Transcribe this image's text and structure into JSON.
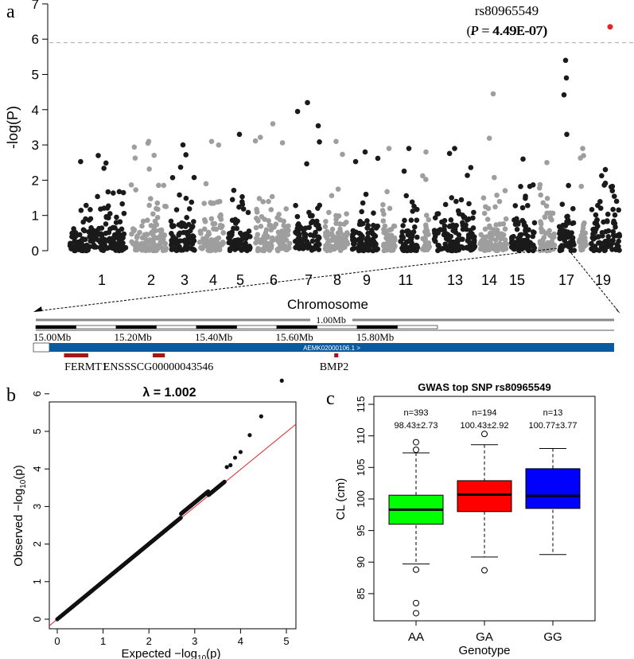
{
  "chart_data": [
    {
      "type": "scatter",
      "panel_label": "a",
      "subtype": "manhattan",
      "ylabel": "-log(P)",
      "ylim": [
        0,
        7
      ],
      "yticks": [
        "0",
        "1",
        "2",
        "3",
        "4",
        "5",
        "6",
        "7"
      ],
      "xtick_labels": [
        "1",
        "2",
        "3",
        "4",
        "5",
        "6",
        "7",
        "8",
        "9",
        "11",
        "13",
        "14",
        "15",
        "17",
        "19"
      ],
      "chromosomes": [
        "1",
        "2",
        "3",
        "4",
        "5",
        "6",
        "7",
        "8",
        "9",
        "10",
        "11",
        "12",
        "13",
        "14",
        "15",
        "16",
        "17",
        "18",
        "19"
      ],
      "significance_threshold": 5.9,
      "top_snp": {
        "id": "rs80965549",
        "annotation": "(P = 4.49E-07)",
        "p_label": "P",
        "p_value": "= 4.49E-07)",
        "neglogp": 6.35,
        "chromosome": "17"
      },
      "colors": {
        "odd": "#1a1a1a",
        "even": "#9e9e9e",
        "top": "#e8231f",
        "threshold": "#aaaaaa"
      }
    },
    {
      "type": "track",
      "title": "Chromosome",
      "scale_label": "1.00Mb",
      "ruler_labels": [
        "15.00Mb",
        "15.20Mb",
        "15.40Mb",
        "15.60Mb",
        "15.80Mb"
      ],
      "contig": "AEMK02000106.1 >",
      "genes": [
        {
          "name": "FERMT1",
          "start_mb": 15.07,
          "end_mb": 15.13
        },
        {
          "name": "ENSSSCG00000043546",
          "start_mb": 15.29,
          "end_mb": 15.32
        },
        {
          "name": "BMP2",
          "start_mb": 15.74,
          "end_mb": 15.75
        }
      ],
      "colors": {
        "contig": "#0a5aa0",
        "gene": "#a01818"
      }
    },
    {
      "type": "scatter",
      "subtype": "qq",
      "panel_label": "b",
      "title": "λ = 1.002",
      "xlabel": "Expected  −log",
      "ylabel": "Observed  −log",
      "axis_sub": "10",
      "axis_var": "(p)",
      "xlim": [
        0,
        5
      ],
      "ylim": [
        0,
        6.5
      ],
      "xticks": [
        "0",
        "1",
        "2",
        "3",
        "4",
        "5"
      ],
      "yticks": [
        "0",
        "1",
        "2",
        "3",
        "4",
        "5",
        "6"
      ],
      "lambda": 1.002,
      "tail_points": [
        [
          3.7,
          4.05
        ],
        [
          3.78,
          4.1
        ],
        [
          3.88,
          4.3
        ],
        [
          4.0,
          4.45
        ],
        [
          4.2,
          4.9
        ],
        [
          4.45,
          5.4
        ],
        [
          4.9,
          6.35
        ]
      ]
    },
    {
      "type": "box",
      "panel_label": "c",
      "title": "GWAS top SNP rs80965549",
      "xlabel": "Genotype",
      "ylabel": "CL (cm)",
      "ylim": [
        81,
        116
      ],
      "yticks": [
        "85",
        "90",
        "95",
        "100",
        "105",
        "110",
        "115"
      ],
      "groups": [
        {
          "name": "AA",
          "n_label": "n=393",
          "stat_label": "98.43±2.73",
          "q1": 96.0,
          "median": 98.3,
          "q3": 100.6,
          "whisker_low": 89.7,
          "whisker_high": 107.3,
          "outliers": [
            109.0,
            107.8,
            88.8,
            83.5,
            81.9
          ],
          "color": "#00ff00"
        },
        {
          "name": "GA",
          "n_label": "n=194",
          "stat_label": "100.43±2.92",
          "q1": 98.0,
          "median": 100.7,
          "q3": 102.9,
          "whisker_low": 90.8,
          "whisker_high": 108.6,
          "outliers": [
            110.3,
            88.7
          ],
          "color": "#ff0000"
        },
        {
          "name": "GG",
          "n_label": "n=13",
          "stat_label": "100.77±3.77",
          "q1": 98.5,
          "median": 100.5,
          "q3": 104.8,
          "whisker_low": 91.2,
          "whisker_high": 108.0,
          "outliers": [],
          "color": "#0000ff"
        }
      ]
    }
  ]
}
